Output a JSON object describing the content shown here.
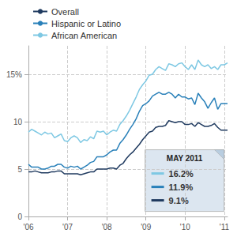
{
  "chart_data": {
    "type": "line",
    "categories": [
      "'06",
      null,
      null,
      null,
      null,
      null,
      null,
      null,
      null,
      null,
      null,
      null,
      "'07",
      null,
      null,
      null,
      null,
      null,
      null,
      null,
      null,
      null,
      null,
      null,
      "'08",
      null,
      null,
      null,
      null,
      null,
      null,
      null,
      null,
      null,
      null,
      null,
      "'09",
      null,
      null,
      null,
      null,
      null,
      null,
      null,
      null,
      null,
      null,
      null,
      "'10",
      null,
      null,
      null,
      null,
      null,
      null,
      null,
      null,
      null,
      null,
      null,
      "'11",
      null
    ],
    "series": [
      {
        "name": "Overall",
        "color": "#1f3a5f",
        "values": [
          4.7,
          4.7,
          4.8,
          4.7,
          4.6,
          4.6,
          4.6,
          4.7,
          4.7,
          4.8,
          4.8,
          4.5,
          4.5,
          4.5,
          4.5,
          4.5,
          4.4,
          4.5,
          4.6,
          4.7,
          4.7,
          5.0,
          5.0,
          5.0,
          5.0,
          5.1,
          5.1,
          5.0,
          5.4,
          5.6,
          6.1,
          6.5,
          6.8,
          7.2,
          7.6,
          8.1,
          8.5,
          8.9,
          9.0,
          9.4,
          9.5,
          9.5,
          9.6,
          10.1,
          10.0,
          9.9,
          10.0,
          10.0,
          9.7,
          9.7,
          9.8,
          9.5,
          9.9,
          9.7,
          9.5,
          9.5,
          9.6,
          9.8,
          9.4,
          9.1,
          9.1,
          9.1
        ]
      },
      {
        "name": "Hispanic or Latino",
        "color": "#2980b9",
        "values": [
          5.5,
          5.2,
          5.2,
          5.2,
          5.0,
          5.0,
          5.1,
          5.3,
          5.3,
          5.5,
          5.5,
          5.2,
          5.1,
          5.3,
          5.2,
          5.3,
          5.0,
          5.2,
          5.4,
          5.7,
          5.8,
          6.3,
          6.3,
          6.3,
          6.5,
          6.8,
          7.0,
          7.0,
          7.7,
          8.1,
          8.6,
          9.2,
          9.7,
          10.3,
          11.1,
          11.7,
          11.9,
          12.2,
          12.7,
          12.9,
          13.1,
          12.9,
          12.9,
          13.1,
          12.9,
          12.5,
          12.9,
          12.6,
          12.6,
          12.4,
          12.5,
          11.8,
          13.0,
          12.5,
          12.1,
          11.4,
          12.0,
          12.5,
          11.3,
          11.9,
          11.9,
          11.9
        ]
      },
      {
        "name": "African American",
        "color": "#7ec8e3",
        "values": [
          8.9,
          9.2,
          9.0,
          8.8,
          8.6,
          8.9,
          8.7,
          8.8,
          8.3,
          8.5,
          8.7,
          8.0,
          7.9,
          8.3,
          8.5,
          8.3,
          7.8,
          8.1,
          8.0,
          8.4,
          8.2,
          9.0,
          8.9,
          9.0,
          8.6,
          8.9,
          9.1,
          9.0,
          9.7,
          10.1,
          10.6,
          11.2,
          11.9,
          12.6,
          13.4,
          13.9,
          14.3,
          14.9,
          15.0,
          15.5,
          15.8,
          15.6,
          15.4,
          16.1,
          16.0,
          15.8,
          16.1,
          16.2,
          15.8,
          15.5,
          16.0,
          15.5,
          16.5,
          16.0,
          15.8,
          16.0,
          15.6,
          15.8,
          15.5,
          16.0,
          16.0,
          16.2
        ]
      }
    ],
    "ylim": [
      0,
      18
    ],
    "yticks": [
      0,
      5,
      10,
      {
        "value": 15,
        "label": "15%"
      }
    ],
    "grid": true,
    "legend": "top",
    "annotations": [
      {
        "title": "MAY 2011",
        "items": [
          {
            "label": "16.2%",
            "series": "African American"
          },
          {
            "label": "11.9%",
            "series": "Hispanic or Latino"
          },
          {
            "label": "9.1%",
            "series": "Overall"
          }
        ]
      }
    ]
  }
}
